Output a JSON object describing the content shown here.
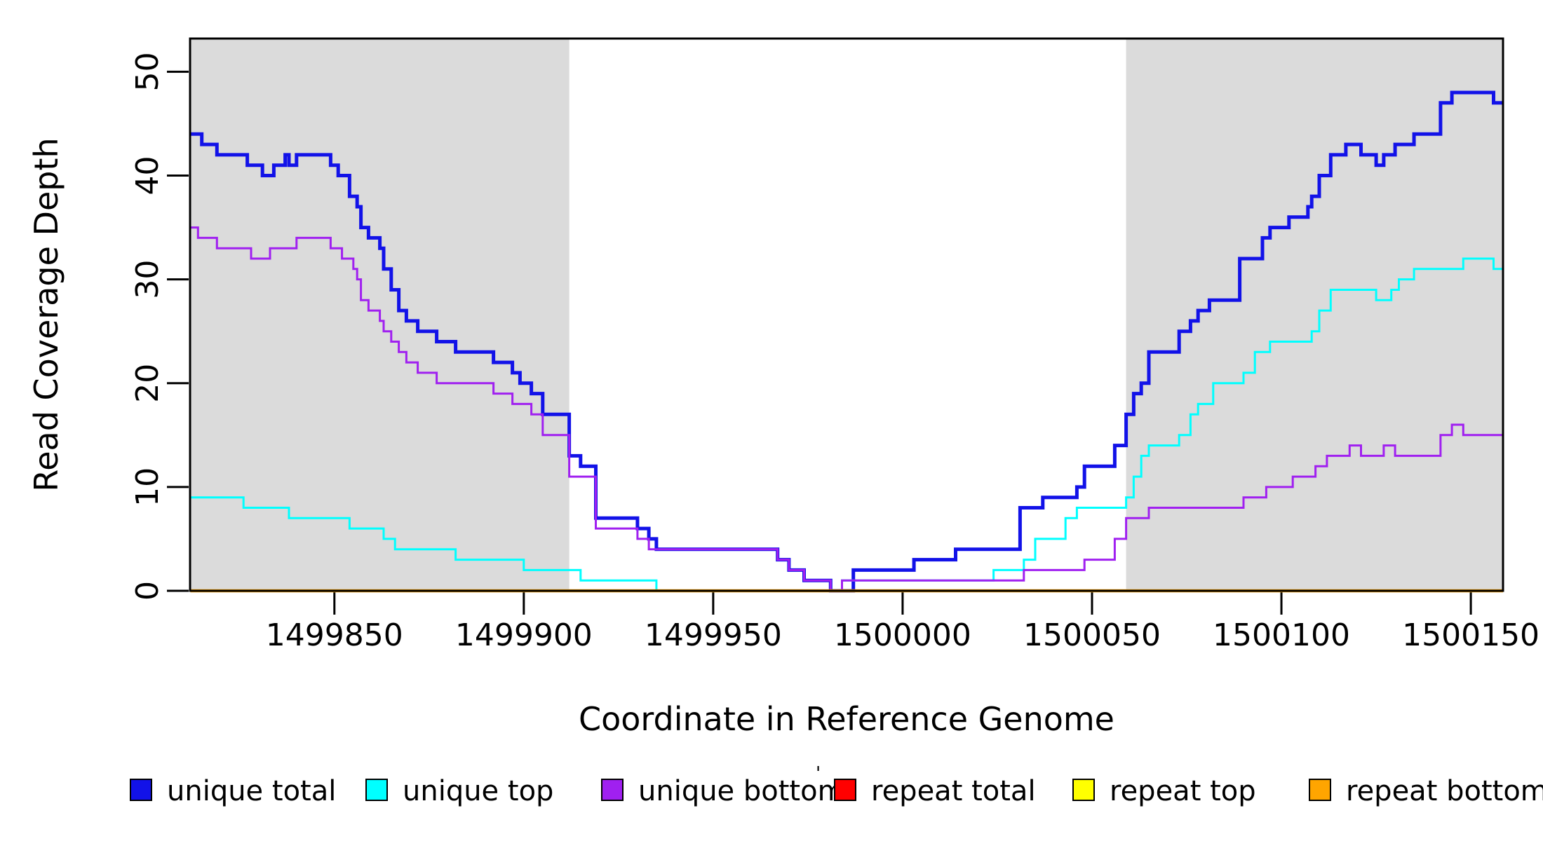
{
  "titles": {
    "x_axis_title": "Coordinate in Reference Genome",
    "y_axis_title": "Read Coverage Depth"
  },
  "colors": {
    "background": "#FFFFFF",
    "shaded_region": "#DBDBDB",
    "axis": "#000000",
    "unique_total": "#1212E8",
    "unique_top": "#00FFFF",
    "unique_bottom": "#A020F0",
    "repeat_total": "#FF0000",
    "repeat_top": "#FFFF00",
    "repeat_bottom": "#FFA500"
  },
  "legend": {
    "items": [
      {
        "label": "unique total",
        "color": "#1212E8"
      },
      {
        "label": "unique top",
        "color": "#00FFFF"
      },
      {
        "label": "unique bottom",
        "color": "#A020F0"
      },
      {
        "label": "repeat total",
        "color": "#FF0000"
      },
      {
        "label": "repeat top",
        "color": "#FFFF00"
      },
      {
        "label": "repeat bottom",
        "color": "#FFA500"
      }
    ],
    "stray_mark": "'"
  },
  "chart_data": {
    "type": "line",
    "subtype": "step-coverage",
    "title": "",
    "xlabel": "Coordinate in Reference Genome",
    "ylabel": "Read Coverage Depth",
    "xlim": [
      1499811.9,
      1500158.5
    ],
    "ylim": [
      0,
      53.2
    ],
    "x_ticks": [
      1499850,
      1499900,
      1499950,
      1500000,
      1500050,
      1500100,
      1500150
    ],
    "y_ticks": [
      0,
      10,
      20,
      30,
      40,
      50
    ],
    "grid": false,
    "legend_position": "bottom",
    "shaded_regions": [
      {
        "x0": 1499811.9,
        "x1": 1499912,
        "color": "#DBDBDB"
      },
      {
        "x0": 1500059,
        "x1": 1500158.5,
        "color": "#DBDBDB"
      }
    ],
    "series": [
      {
        "name": "unique total",
        "color": "#1212E8",
        "width": 5,
        "points": [
          [
            1499812,
            44
          ],
          [
            1499815,
            43
          ],
          [
            1499819,
            42
          ],
          [
            1499827,
            41
          ],
          [
            1499831,
            40
          ],
          [
            1499834,
            41
          ],
          [
            1499837,
            42
          ],
          [
            1499838,
            41
          ],
          [
            1499840,
            42
          ],
          [
            1499849,
            41
          ],
          [
            1499851,
            40
          ],
          [
            1499854,
            38
          ],
          [
            1499856,
            37
          ],
          [
            1499857,
            35
          ],
          [
            1499859,
            34
          ],
          [
            1499862,
            33
          ],
          [
            1499863,
            31
          ],
          [
            1499865,
            29
          ],
          [
            1499867,
            27
          ],
          [
            1499869,
            26
          ],
          [
            1499872,
            25
          ],
          [
            1499877,
            24
          ],
          [
            1499882,
            23
          ],
          [
            1499892,
            22
          ],
          [
            1499897,
            21
          ],
          [
            1499899,
            20
          ],
          [
            1499902,
            19
          ],
          [
            1499905,
            17
          ],
          [
            1499912,
            13
          ],
          [
            1499915,
            12
          ],
          [
            1499919,
            7
          ],
          [
            1499930,
            6
          ],
          [
            1499933,
            5
          ],
          [
            1499935,
            4
          ],
          [
            1499967,
            3
          ],
          [
            1499970,
            2
          ],
          [
            1499974,
            1
          ],
          [
            1499981,
            0
          ],
          [
            1499987,
            2
          ],
          [
            1500003,
            3
          ],
          [
            1500014,
            4
          ],
          [
            1500031,
            8
          ],
          [
            1500037,
            9
          ],
          [
            1500046,
            10
          ],
          [
            1500048,
            12
          ],
          [
            1500056,
            14
          ],
          [
            1500059,
            17
          ],
          [
            1500061,
            19
          ],
          [
            1500063,
            20
          ],
          [
            1500065,
            23
          ],
          [
            1500073,
            25
          ],
          [
            1500076,
            26
          ],
          [
            1500078,
            27
          ],
          [
            1500081,
            28
          ],
          [
            1500089,
            32
          ],
          [
            1500095,
            34
          ],
          [
            1500097,
            35
          ],
          [
            1500102,
            36
          ],
          [
            1500107,
            37
          ],
          [
            1500108,
            38
          ],
          [
            1500110,
            40
          ],
          [
            1500113,
            42
          ],
          [
            1500117,
            43
          ],
          [
            1500121,
            42
          ],
          [
            1500125,
            41
          ],
          [
            1500127,
            42
          ],
          [
            1500130,
            43
          ],
          [
            1500135,
            44
          ],
          [
            1500142,
            47
          ],
          [
            1500145,
            48
          ],
          [
            1500156,
            47
          ],
          [
            1500158.5,
            47
          ]
        ]
      },
      {
        "name": "unique top",
        "color": "#00FFFF",
        "width": 3,
        "points": [
          [
            1499812,
            9
          ],
          [
            1499826,
            8
          ],
          [
            1499838,
            7
          ],
          [
            1499854,
            6
          ],
          [
            1499863,
            5
          ],
          [
            1499866,
            4
          ],
          [
            1499882,
            3
          ],
          [
            1499900,
            2
          ],
          [
            1499915,
            1
          ],
          [
            1499935,
            0
          ],
          [
            1499984,
            1
          ],
          [
            1500024,
            2
          ],
          [
            1500032,
            3
          ],
          [
            1500035,
            5
          ],
          [
            1500043,
            7
          ],
          [
            1500046,
            8
          ],
          [
            1500059,
            9
          ],
          [
            1500061,
            11
          ],
          [
            1500063,
            13
          ],
          [
            1500065,
            14
          ],
          [
            1500073,
            15
          ],
          [
            1500076,
            17
          ],
          [
            1500078,
            18
          ],
          [
            1500082,
            20
          ],
          [
            1500090,
            21
          ],
          [
            1500093,
            23
          ],
          [
            1500097,
            24
          ],
          [
            1500108,
            25
          ],
          [
            1500110,
            27
          ],
          [
            1500113,
            29
          ],
          [
            1500125,
            28
          ],
          [
            1500129,
            29
          ],
          [
            1500131,
            30
          ],
          [
            1500135,
            31
          ],
          [
            1500148,
            32
          ],
          [
            1500156,
            31
          ],
          [
            1500158.5,
            31
          ]
        ]
      },
      {
        "name": "unique bottom",
        "color": "#A020F0",
        "width": 3,
        "points": [
          [
            1499812,
            35
          ],
          [
            1499814,
            34
          ],
          [
            1499819,
            33
          ],
          [
            1499828,
            32
          ],
          [
            1499833,
            33
          ],
          [
            1499840,
            34
          ],
          [
            1499849,
            33
          ],
          [
            1499852,
            32
          ],
          [
            1499855,
            31
          ],
          [
            1499856,
            30
          ],
          [
            1499857,
            28
          ],
          [
            1499859,
            27
          ],
          [
            1499862,
            26
          ],
          [
            1499863,
            25
          ],
          [
            1499865,
            24
          ],
          [
            1499867,
            23
          ],
          [
            1499869,
            22
          ],
          [
            1499872,
            21
          ],
          [
            1499877,
            20
          ],
          [
            1499892,
            19
          ],
          [
            1499897,
            18
          ],
          [
            1499902,
            17
          ],
          [
            1499905,
            15
          ],
          [
            1499912,
            11
          ],
          [
            1499919,
            6
          ],
          [
            1499930,
            5
          ],
          [
            1499933,
            4
          ],
          [
            1499967,
            3
          ],
          [
            1499970,
            2
          ],
          [
            1499974,
            1
          ],
          [
            1499981,
            0
          ],
          [
            1499984,
            1
          ],
          [
            1500032,
            2
          ],
          [
            1500048,
            3
          ],
          [
            1500056,
            5
          ],
          [
            1500059,
            7
          ],
          [
            1500065,
            8
          ],
          [
            1500090,
            9
          ],
          [
            1500096,
            10
          ],
          [
            1500103,
            11
          ],
          [
            1500109,
            12
          ],
          [
            1500112,
            13
          ],
          [
            1500118,
            14
          ],
          [
            1500121,
            13
          ],
          [
            1500127,
            14
          ],
          [
            1500130,
            13
          ],
          [
            1500142,
            15
          ],
          [
            1500145,
            16
          ],
          [
            1500148,
            15
          ],
          [
            1500158.5,
            15
          ]
        ]
      },
      {
        "name": "repeat total",
        "color": "#FF0000",
        "width": 3.5,
        "points": [
          [
            1499812,
            0
          ],
          [
            1500158.5,
            0
          ]
        ]
      },
      {
        "name": "repeat top",
        "color": "#FFFF00",
        "width": 3,
        "points": [
          [
            1499812,
            0
          ],
          [
            1500158.5,
            0
          ]
        ]
      },
      {
        "name": "repeat bottom",
        "color": "#FFA500",
        "width": 4.5,
        "points": [
          [
            1499812,
            0
          ],
          [
            1500158.5,
            0
          ]
        ]
      }
    ]
  }
}
